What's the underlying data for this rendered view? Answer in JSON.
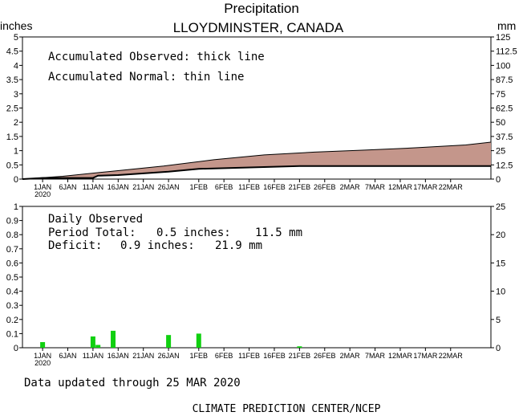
{
  "title": "Precipitation",
  "subtitle": "LLOYDMINSTER, CANADA",
  "left_unit": "inches",
  "right_unit": "mm",
  "footer_updated": "Data updated through 25 MAR 2020",
  "footer_credit": "CLIMATE PREDICTION CENTER/NCEP",
  "colors": {
    "observed_fill": "#c4968b",
    "bar": "#10d010",
    "line": "#000000"
  },
  "x_tick_labels": [
    "1JAN",
    "6JAN",
    "11JAN",
    "16JAN",
    "21JAN",
    "26JAN",
    "1FEB",
    "6FEB",
    "11FEB",
    "16FEB",
    "21FEB",
    "26FEB",
    "2MAR",
    "7MAR",
    "12MAR",
    "17MAR",
    "22MAR"
  ],
  "x_year_label": "2020",
  "chart_data": [
    {
      "type": "area",
      "title": "",
      "annotations": [
        "Accumulated Observed: thick line",
        "Accumulated Normal: thin line"
      ],
      "ylabel": "inches",
      "ylabel_right": "mm",
      "ylim": [
        0,
        5
      ],
      "ylim_right": [
        0,
        125
      ],
      "y_ticks": [
        "0",
        "0.5",
        "1",
        "1.5",
        "2",
        "2.5",
        "3",
        "3.5",
        "4",
        "4.5",
        "5"
      ],
      "y_ticks_right": [
        "0",
        "12.5",
        "25",
        "37.5",
        "50",
        "62.5",
        "75",
        "87.5",
        "100",
        "112.5",
        "125"
      ],
      "x_start": "2019-12-28",
      "x_end": "2020-03-30",
      "series": [
        {
          "name": "Accumulated Normal",
          "x": [
            "2019-12-28",
            "2020-01-05",
            "2020-01-15",
            "2020-01-25",
            "2020-02-04",
            "2020-02-14",
            "2020-02-24",
            "2020-03-05",
            "2020-03-15",
            "2020-03-25",
            "2020-03-30"
          ],
          "values": [
            0.0,
            0.1,
            0.28,
            0.46,
            0.68,
            0.85,
            0.95,
            1.02,
            1.1,
            1.2,
            1.3
          ]
        },
        {
          "name": "Accumulated Observed",
          "x": [
            "2019-12-28",
            "2020-01-01",
            "2020-01-11",
            "2020-01-12",
            "2020-01-16",
            "2020-01-26",
            "2020-02-01",
            "2020-02-21",
            "2020-03-25",
            "2020-03-30"
          ],
          "values": [
            0.0,
            0.04,
            0.04,
            0.12,
            0.14,
            0.26,
            0.36,
            0.46,
            0.46,
            0.46
          ]
        }
      ]
    },
    {
      "type": "bar",
      "title": "Daily Observed",
      "annotations": [
        {
          "label": "Period Total:",
          "inches": "0.5 inches:",
          "mm": "11.5 mm"
        },
        {
          "label": "Deficit:",
          "inches": "0.9 inches:",
          "mm": "21.9 mm"
        }
      ],
      "ylabel": "inches",
      "ylabel_right": "mm",
      "ylim": [
        0,
        1
      ],
      "ylim_right": [
        0,
        25
      ],
      "y_ticks": [
        "0",
        "0.1",
        "0.2",
        "0.3",
        "0.4",
        "0.5",
        "0.6",
        "0.7",
        "0.8",
        "0.9",
        "1"
      ],
      "y_ticks_right": [
        "0",
        "5",
        "10",
        "15",
        "20",
        "25"
      ],
      "x": [
        "2020-01-01",
        "2020-01-11",
        "2020-01-12",
        "2020-01-15",
        "2020-01-26",
        "2020-02-01",
        "2020-02-21"
      ],
      "values": [
        0.04,
        0.08,
        0.02,
        0.12,
        0.09,
        0.1,
        0.01
      ]
    }
  ]
}
